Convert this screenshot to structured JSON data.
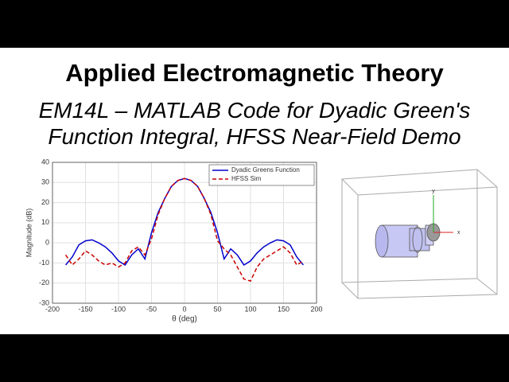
{
  "header": {
    "title": "Applied Electromagnetic Theory",
    "subtitle_lines": [
      "EM14L – MATLAB Code for Dyadic Green's",
      "Function Integral, HFSS Near-Field Demo"
    ]
  },
  "chart_data": {
    "type": "line",
    "xlabel": "θ (deg)",
    "ylabel": "Magnitude (dB)",
    "x": [
      -180,
      -170,
      -160,
      -150,
      -140,
      -130,
      -120,
      -110,
      -100,
      -90,
      -80,
      -70,
      -60,
      -50,
      -40,
      -30,
      -20,
      -10,
      0,
      10,
      20,
      30,
      40,
      50,
      60,
      70,
      80,
      90,
      100,
      110,
      120,
      130,
      140,
      150,
      160,
      170,
      180
    ],
    "series": [
      {
        "name": "Dyadic Greens Function",
        "color": "#0000cc",
        "dash": false,
        "values": [
          -11,
          -7,
          -1,
          1,
          1.5,
          0,
          -2,
          -5,
          -9,
          -11,
          -6,
          -3,
          -8,
          5,
          15,
          22,
          28,
          31,
          32,
          31,
          28,
          22,
          15,
          5,
          -8,
          -3,
          -6,
          -11,
          -9,
          -5,
          -2,
          0,
          1.5,
          1,
          -1,
          -7,
          -11
        ]
      },
      {
        "name": "HFSS Sim",
        "color": "#cc0000",
        "dash": true,
        "values": [
          -6,
          -11,
          -8,
          -4,
          -6,
          -9,
          -11,
          -10,
          -12,
          -10,
          -4,
          -2,
          -6,
          2,
          14,
          22,
          28,
          31,
          32,
          31,
          28,
          22,
          14,
          1,
          -3,
          -6,
          -12,
          -18,
          -19,
          -12,
          -8,
          -6,
          -4,
          -2,
          -5,
          -11,
          -9
        ]
      }
    ],
    "xlim": [
      -200,
      200
    ],
    "xticks": [
      -200,
      -150,
      -100,
      -50,
      0,
      50,
      100,
      150,
      200
    ],
    "ylim": [
      -30,
      40
    ],
    "yticks": [
      -30,
      -20,
      -10,
      0,
      10,
      20,
      30,
      40
    ],
    "grid": true,
    "legend": "upper-right"
  },
  "diagram": {
    "axis_labels": [
      "y",
      "x"
    ]
  }
}
